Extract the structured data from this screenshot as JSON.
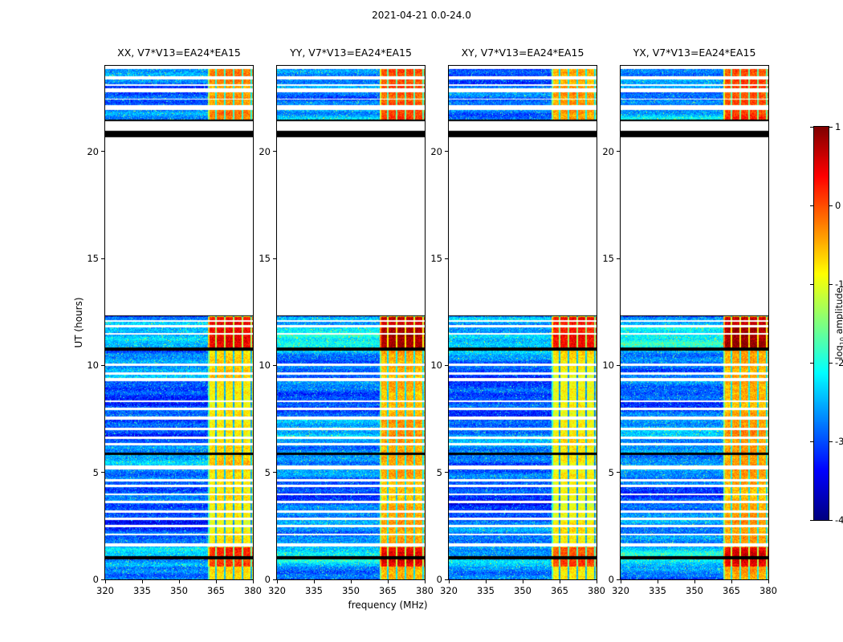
{
  "chart_data": {
    "type": "heatmap",
    "title": "2021-04-21 0.0-24.0",
    "xlabel": "frequency (MHz)",
    "ylabel": "UT (hours)",
    "x_range": [
      320,
      380
    ],
    "y_range": [
      0,
      24
    ],
    "x_ticks": [
      320,
      335,
      350,
      365,
      380
    ],
    "y_ticks": [
      0,
      5,
      10,
      15,
      20
    ],
    "grid": false,
    "panels": [
      {
        "id": "XX",
        "title": "XX, V7*V13=EA24*EA15",
        "gain": 0.0
      },
      {
        "id": "YY",
        "title": "YY, V7*V13=EA24*EA15",
        "gain": 0.28
      },
      {
        "id": "XY",
        "title": "XY, V7*V13=EA24*EA15",
        "gain": -0.12
      },
      {
        "id": "YX",
        "title": "YX, V7*V13=EA24*EA15",
        "gain": 0.32
      }
    ],
    "colorbar": {
      "label_prefix": "log",
      "label_sub": "10",
      "label_suffix": " amplitude",
      "ticks": [
        1,
        0,
        -1,
        -2,
        -3,
        -4
      ],
      "vmin": -4,
      "vmax": 1,
      "colormap": "jet",
      "position": "right"
    },
    "render": {
      "seed": 20210421,
      "noise_base": -2.85,
      "noise_spread": 0.38,
      "speckle_prob": 0.03,
      "speckle_boost": 0.9,
      "rfi_band_mhz": [
        361.5,
        380
      ],
      "rfi_base": -0.85,
      "rfi_spread": 0.3,
      "rfi_dark_line_depth": 2.0,
      "data_blocks": [
        [
          0.0,
          12.35
        ],
        [
          21.45,
          21.95
        ],
        [
          22.15,
          22.75
        ],
        [
          22.95,
          23.35
        ],
        [
          23.5,
          23.85
        ]
      ],
      "white_gaps": [
        [
          1.55,
          1.68
        ],
        [
          2.05,
          2.15
        ],
        [
          2.45,
          2.55
        ],
        [
          2.78,
          2.88
        ],
        [
          3.12,
          3.22
        ],
        [
          3.56,
          3.66
        ],
        [
          3.92,
          4.02
        ],
        [
          4.32,
          4.42
        ],
        [
          4.58,
          4.68
        ],
        [
          5.15,
          5.32
        ],
        [
          6.28,
          6.38
        ],
        [
          6.58,
          6.68
        ],
        [
          6.98,
          7.08
        ],
        [
          7.48,
          7.62
        ],
        [
          7.92,
          8.02
        ],
        [
          8.27,
          8.37
        ],
        [
          9.28,
          9.42
        ],
        [
          9.58,
          9.68
        ],
        [
          9.98,
          10.08
        ],
        [
          11.42,
          11.52
        ],
        [
          11.78,
          11.88
        ],
        [
          12.02,
          12.12
        ],
        [
          22.42,
          22.47
        ],
        [
          23.08,
          23.13
        ]
      ],
      "black_rows": [
        [
          0.95,
          1.08
        ],
        [
          5.8,
          5.92
        ],
        [
          10.7,
          10.82
        ],
        [
          12.3,
          12.35
        ],
        [
          20.65,
          20.97
        ],
        [
          21.42,
          21.48
        ]
      ],
      "bright_periods": [
        [
          0.6,
          1.5,
          0.8
        ],
        [
          10.85,
          12.28,
          1.15
        ],
        [
          21.45,
          23.85,
          0.5
        ]
      ]
    }
  }
}
